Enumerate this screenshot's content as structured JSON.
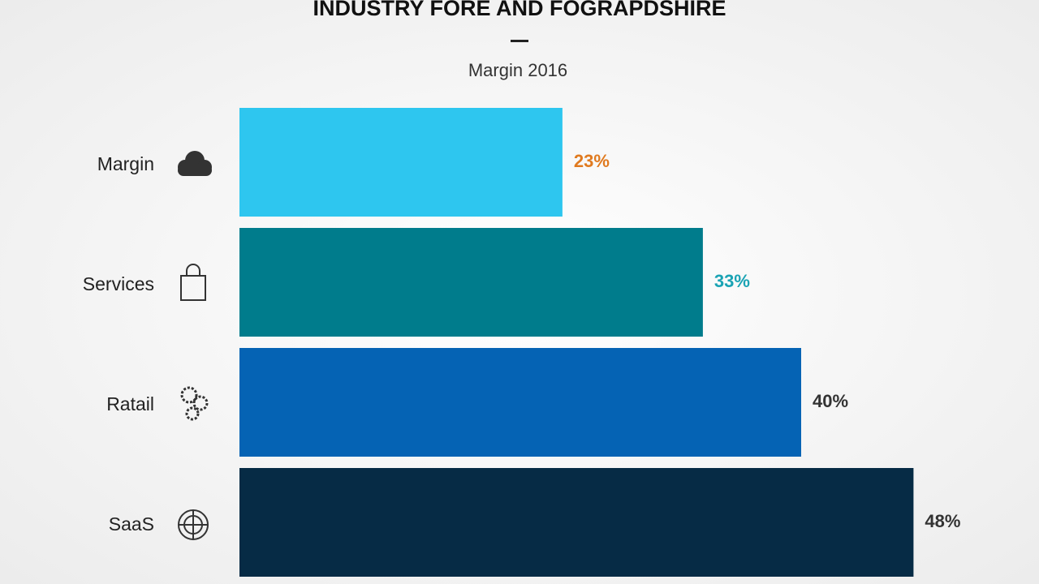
{
  "chart_data": {
    "type": "bar",
    "orientation": "horizontal",
    "title": "INDUSTRY FORE AND FOGRAPDSHIRE",
    "subtitle": "Margin 2016",
    "categories": [
      "Margin",
      "Services",
      "Ratail",
      "SaaS"
    ],
    "values": [
      23,
      33,
      40,
      48
    ],
    "value_labels": [
      "23%",
      "33%",
      "40%",
      "48%"
    ],
    "colors": [
      "#2ec6ef",
      "#007c8c",
      "#0563b4",
      "#062b45"
    ],
    "value_label_colors": [
      "#e07a1f",
      "#1aa3b4",
      "#333333",
      "#333333"
    ],
    "xlim": [
      0,
      50
    ]
  }
}
